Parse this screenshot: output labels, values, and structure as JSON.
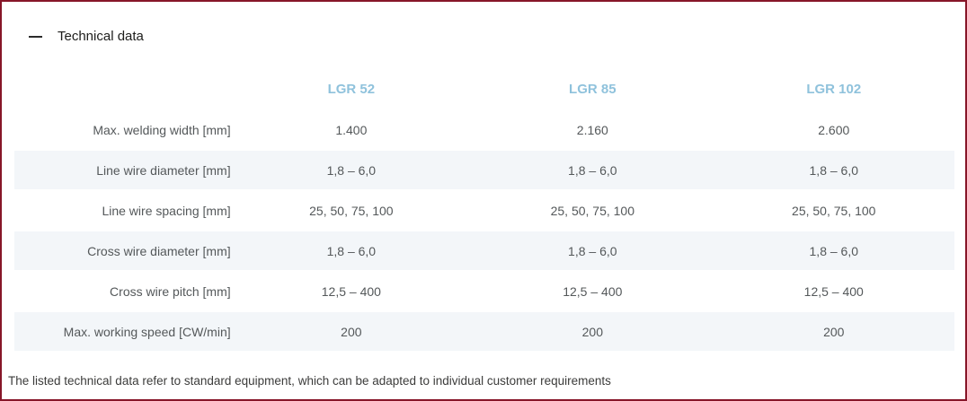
{
  "section": {
    "title": "Technical data",
    "toggle_icon": "minus"
  },
  "table": {
    "columns": [
      "LGR 52",
      "LGR 85",
      "LGR 102"
    ],
    "rows": [
      {
        "label": "Max. welding width [mm]",
        "values": [
          "1.400",
          "2.160",
          "2.600"
        ]
      },
      {
        "label": "Line wire diameter [mm]",
        "values": [
          "1,8 – 6,0",
          "1,8 – 6,0",
          "1,8 – 6,0"
        ]
      },
      {
        "label": "Line wire spacing [mm]",
        "values": [
          "25, 50, 75, 100",
          "25, 50, 75, 100",
          "25, 50, 75, 100"
        ]
      },
      {
        "label": "Cross wire diameter [mm]",
        "values": [
          "1,8 – 6,0",
          "1,8 – 6,0",
          "1,8 – 6,0"
        ]
      },
      {
        "label": "Cross wire pitch [mm]",
        "values": [
          "12,5 – 400",
          "12,5 – 400",
          "12,5 – 400"
        ]
      },
      {
        "label": "Max. working speed [CW/min]",
        "values": [
          "200",
          "200",
          "200"
        ]
      }
    ]
  },
  "footer": {
    "note": "The listed technical data refer to standard equipment, which can be adapted to individual customer requirements"
  },
  "colors": {
    "border": "#871629",
    "column_header_text": "#8fc2dc",
    "stripe_background": "#f3f6f9",
    "body_text": "#54585a",
    "title_text": "#1d1d1b"
  }
}
